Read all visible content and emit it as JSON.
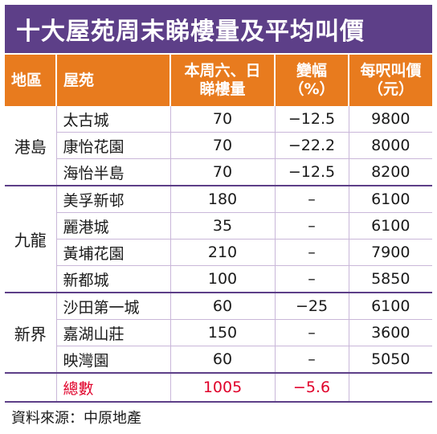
{
  "chart_data": {
    "type": "table",
    "title": "十大屋苑周末睇樓量及平均叫價",
    "columns": [
      "地區",
      "屋苑",
      "本周六、日\n睇樓量",
      "變幅\n（%）",
      "每呎叫價\n（元）"
    ],
    "groups": [
      {
        "region": "港島",
        "rows": [
          {
            "estate": "太古城",
            "viewings": "70",
            "change": "−12.5",
            "price": "9800"
          },
          {
            "estate": "康怡花園",
            "viewings": "70",
            "change": "−22.2",
            "price": "8000"
          },
          {
            "estate": "海怡半島",
            "viewings": "70",
            "change": "−12.5",
            "price": "8200"
          }
        ]
      },
      {
        "region": "九龍",
        "rows": [
          {
            "estate": "美孚新邨",
            "viewings": "180",
            "change": "–",
            "price": "6100"
          },
          {
            "estate": "麗港城",
            "viewings": "35",
            "change": "–",
            "price": "6100"
          },
          {
            "estate": "黃埔花園",
            "viewings": "210",
            "change": "–",
            "price": "7900"
          },
          {
            "estate": "新都城",
            "viewings": "100",
            "change": "–",
            "price": "5850"
          }
        ]
      },
      {
        "region": "新界",
        "rows": [
          {
            "estate": "沙田第一城",
            "viewings": "60",
            "change": "−25",
            "price": "6100"
          },
          {
            "estate": "嘉湖山莊",
            "viewings": "150",
            "change": "–",
            "price": "3600"
          },
          {
            "estate": "映灣園",
            "viewings": "60",
            "change": "–",
            "price": "5050"
          }
        ]
      }
    ],
    "total": {
      "label": "總數",
      "viewings": "1005",
      "change": "−5.6",
      "price": ""
    },
    "source": "資料來源：中原地產"
  },
  "colors": {
    "title_bg": "#5d3f88",
    "header_bg": "#e87b1e",
    "total_text": "#e0002a",
    "rule": "#c9b7d9"
  }
}
